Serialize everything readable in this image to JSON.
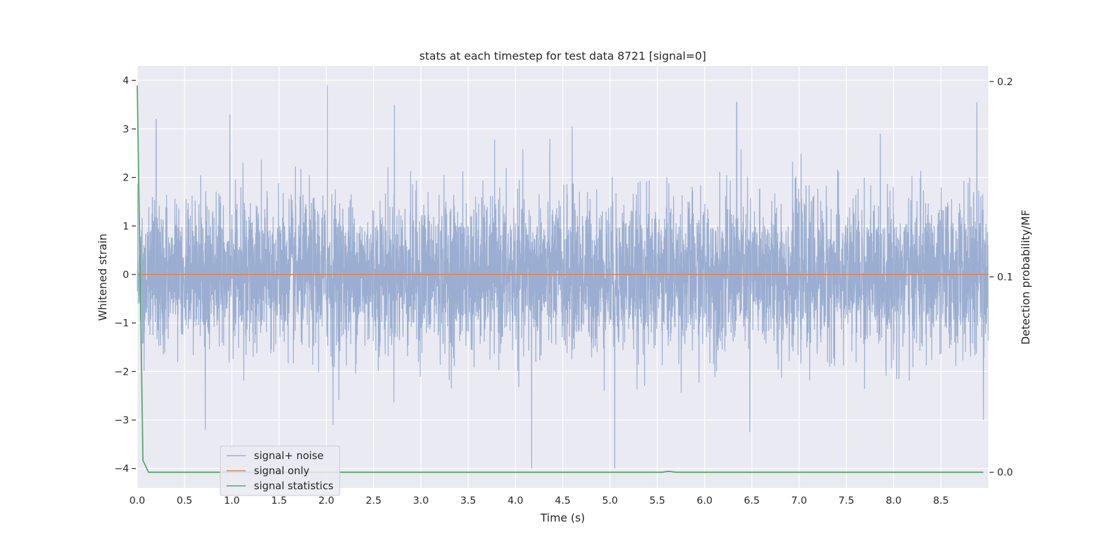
{
  "chart_data": {
    "type": "line",
    "title": "stats at each timestep for test data 8721 [signal=0]",
    "xlabel": "Time (s)",
    "ylabel": "Whitened strain",
    "y2label": "Detection probability/MF",
    "xlim": [
      0.0,
      9.0
    ],
    "ylim": [
      -4.4,
      4.3
    ],
    "y2lim": [
      -0.008,
      0.208
    ],
    "x_ticks": [
      "0.0",
      "0.5",
      "1.0",
      "1.5",
      "2.0",
      "2.5",
      "3.0",
      "3.5",
      "4.0",
      "4.5",
      "5.0",
      "5.5",
      "6.0",
      "6.5",
      "7.0",
      "7.5",
      "8.0",
      "8.5"
    ],
    "y_ticks": [
      "4",
      "3",
      "2",
      "1",
      "0",
      "−1",
      "−2",
      "−3",
      "−4"
    ],
    "y2_ticks": [
      "0.2",
      "0.1",
      "0.0"
    ],
    "grid": true,
    "legend_position": "lower-left",
    "colors": {
      "plot_background": "#eaeaf2",
      "grid": "#ffffff",
      "signal_noise": "#4c72b0",
      "signal_only": "#dd8452",
      "statistics": "#55a868"
    },
    "series": [
      {
        "name": "signal+ noise",
        "axis": "left",
        "color": "#4c72b0",
        "alpha": 0.5,
        "description_level": {
          "x_range": [
            0.0,
            9.0
          ],
          "typical_band": [
            -2.0,
            2.0
          ],
          "peaks": [
            [
              0.2,
              3.2
            ],
            [
              0.98,
              3.3
            ],
            [
              2.01,
              3.9
            ],
            [
              2.72,
              3.5
            ],
            [
              4.6,
              3.05
            ],
            [
              6.34,
              3.55
            ],
            [
              8.88,
              3.55
            ]
          ],
          "troughs": [
            [
              0.72,
              -3.2
            ],
            [
              2.07,
              -3.1
            ],
            [
              4.17,
              -4.0
            ],
            [
              5.05,
              -4.0
            ],
            [
              6.48,
              -3.25
            ],
            [
              8.95,
              -3.0
            ]
          ]
        }
      },
      {
        "name": "signal only",
        "axis": "left",
        "color": "#dd8452",
        "x": [
          0.0,
          9.0
        ],
        "y": [
          0.0,
          0.0
        ]
      },
      {
        "name": "signal statistics",
        "axis": "right",
        "color": "#55a868",
        "x": [
          0.0,
          0.06,
          0.12,
          5.55,
          5.62,
          5.7,
          8.95
        ],
        "y": [
          0.198,
          0.006,
          0.0,
          0.0,
          0.0005,
          0.0,
          0.0
        ]
      }
    ]
  }
}
